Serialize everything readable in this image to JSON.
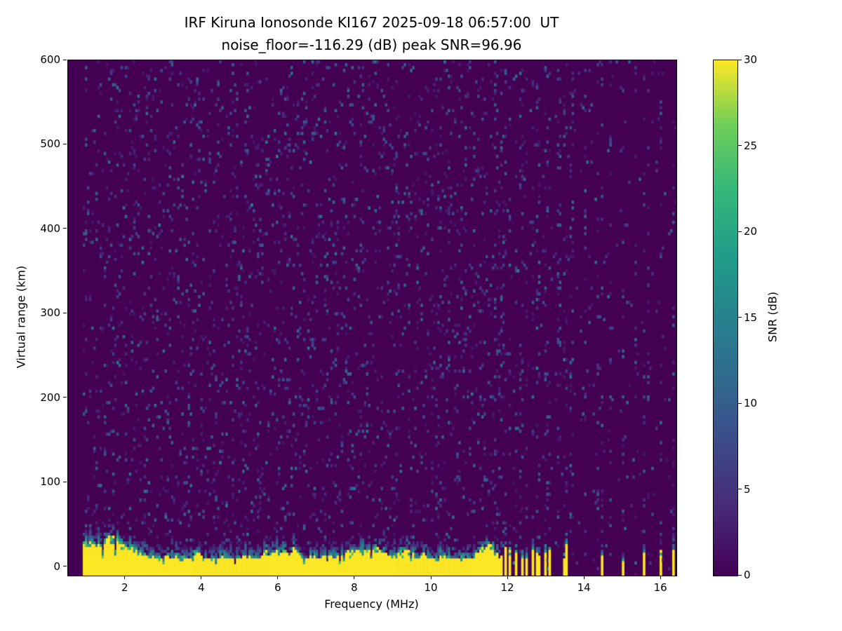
{
  "figure": {
    "kind": "matplotlib-ionogram",
    "background_color": "#ffffff",
    "text_color": "#000000"
  },
  "chart_data": {
    "type": "heatmap",
    "title": "IRF Kiruna Ionosonde KI167 2025-09-18 06:57:00  UT",
    "subtitle": "noise_floor=-116.29 (dB) peak SNR=96.96",
    "station": "IRF Kiruna Ionosonde KI167",
    "timestamp_ut": "2025-09-18 06:57:00",
    "noise_floor_db": -116.29,
    "peak_snr_db": 96.96,
    "xlabel": "Frequency (MHz)",
    "ylabel": "Virtual range (km)",
    "colorbar_label": "SNR (dB)",
    "x_range_mhz": [
      0.5,
      16.4
    ],
    "y_range_km": [
      -10,
      600
    ],
    "snr_range_db": [
      0,
      30
    ],
    "xticks": [
      2,
      4,
      6,
      8,
      10,
      12,
      14,
      16
    ],
    "yticks": [
      0,
      100,
      200,
      300,
      400,
      500,
      600
    ],
    "colorbar_ticks": [
      0,
      5,
      10,
      15,
      20,
      25,
      30
    ],
    "grid": false,
    "legend_position": "colorbar-right",
    "colormap": "viridis",
    "colormap_stops": [
      "#440154",
      "#482878",
      "#3e4989",
      "#31688e",
      "#26828e",
      "#1f9e89",
      "#35b779",
      "#6ece58",
      "#fde725"
    ],
    "background_color": "#440154",
    "peak_color": "#fde725",
    "heatmap_model": {
      "description": "Dark viridis background with sparse low-SNR speckle noise; saturated yellow ground-clutter band at 0-35 km virtual range from 0.9 to 11.6 MHz with speckled teal/green transition top; above 11.6 MHz only narrow vertical interference spikes reach SNR=30 near 0 km; faint full-height vertical noise stripes at higher frequencies.",
      "seed": 16757,
      "nx": 290,
      "ny": 180,
      "data_start_mhz": 0.88,
      "ground_clutter": {
        "freq_start_mhz": 0.88,
        "freq_end_mhz": 11.62,
        "yellow_top_km_min": 10,
        "yellow_top_km_max": 38,
        "transition_top_km_max": 58,
        "snr_db": 30
      },
      "noise_speckle": {
        "probability_below_11_6": 0.07,
        "probability_above_11_6": 0.018,
        "snr_db_range": [
          2,
          14
        ]
      },
      "rf_spike_freqs_mhz": [
        11.66,
        11.74,
        11.82,
        11.94,
        12.06,
        12.22,
        12.38,
        12.5,
        12.64,
        12.78,
        12.96,
        13.1,
        13.5,
        14.46,
        15.0,
        15.55,
        16.0,
        16.3
      ],
      "stripe_extra_freqs_mhz": [
        10.2,
        11.9,
        12.33,
        12.66,
        13.0,
        13.33,
        13.66,
        14.0,
        14.33,
        14.66,
        15.0,
        15.33,
        15.66,
        16.0,
        16.33
      ],
      "stripe_speckle_probability": 0.11
    }
  }
}
